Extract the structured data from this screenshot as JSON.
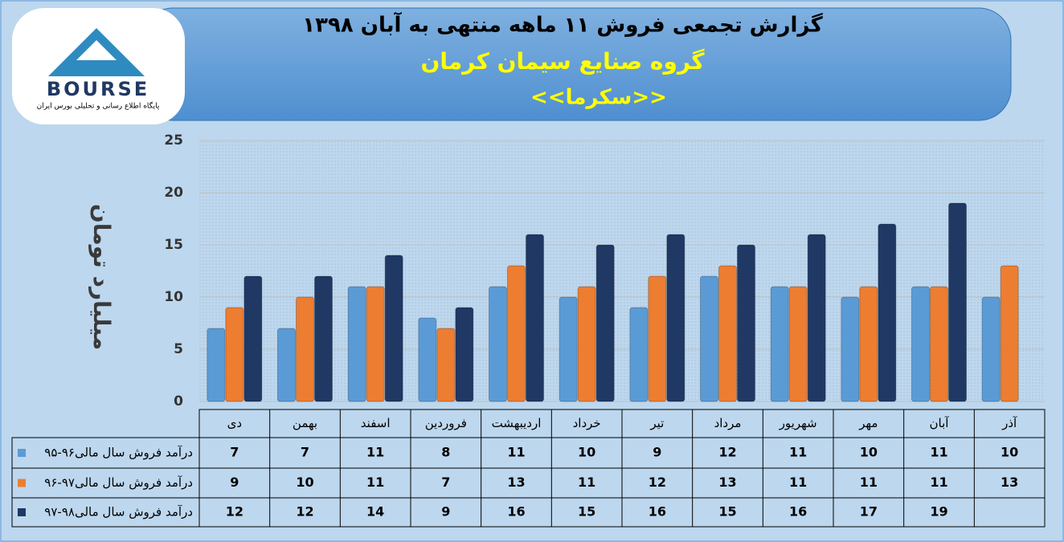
{
  "logo": {
    "name": "BOURSE",
    "tagline": "پایگاه اطلاع رسانی و تحلیلی بورس ایران"
  },
  "chart_data": {
    "type": "bar",
    "title": "گزارش تجمعی فروش ۱۱ ماهه منتهی به آبان ۱۳۹۸",
    "subtitle": "گروه صنایع سیمان کرمان",
    "symbol": "<<سکرما>>",
    "y_label": "میلیارد تومان",
    "categories": [
      "دی",
      "بهمن",
      "اسفند",
      "فروردین",
      "اردیبهشت",
      "خرداد",
      "تیر",
      "مرداد",
      "شهریور",
      "مهر",
      "آبان",
      "آذر"
    ],
    "series": [
      {
        "name": "درآمد فروش سال مالی۹۶-۹۵",
        "color": "#5b9bd5",
        "values": [
          7,
          7,
          11,
          8,
          11,
          10,
          9,
          12,
          11,
          10,
          11,
          10
        ]
      },
      {
        "name": "درآمد فروش سال مالی۹۷-۹۶",
        "color": "#ed7d31",
        "values": [
          9,
          10,
          11,
          7,
          13,
          11,
          12,
          13,
          11,
          11,
          11,
          13
        ]
      },
      {
        "name": "درآمد فروش سال مالی۹۸-۹۷",
        "color": "#1f3864",
        "values": [
          12,
          12,
          14,
          9,
          16,
          15,
          16,
          15,
          16,
          17,
          19,
          null
        ]
      }
    ],
    "ylim": [
      0,
      25
    ],
    "yticks": [
      0,
      5,
      10,
      15,
      20,
      25
    ],
    "grid": true
  }
}
